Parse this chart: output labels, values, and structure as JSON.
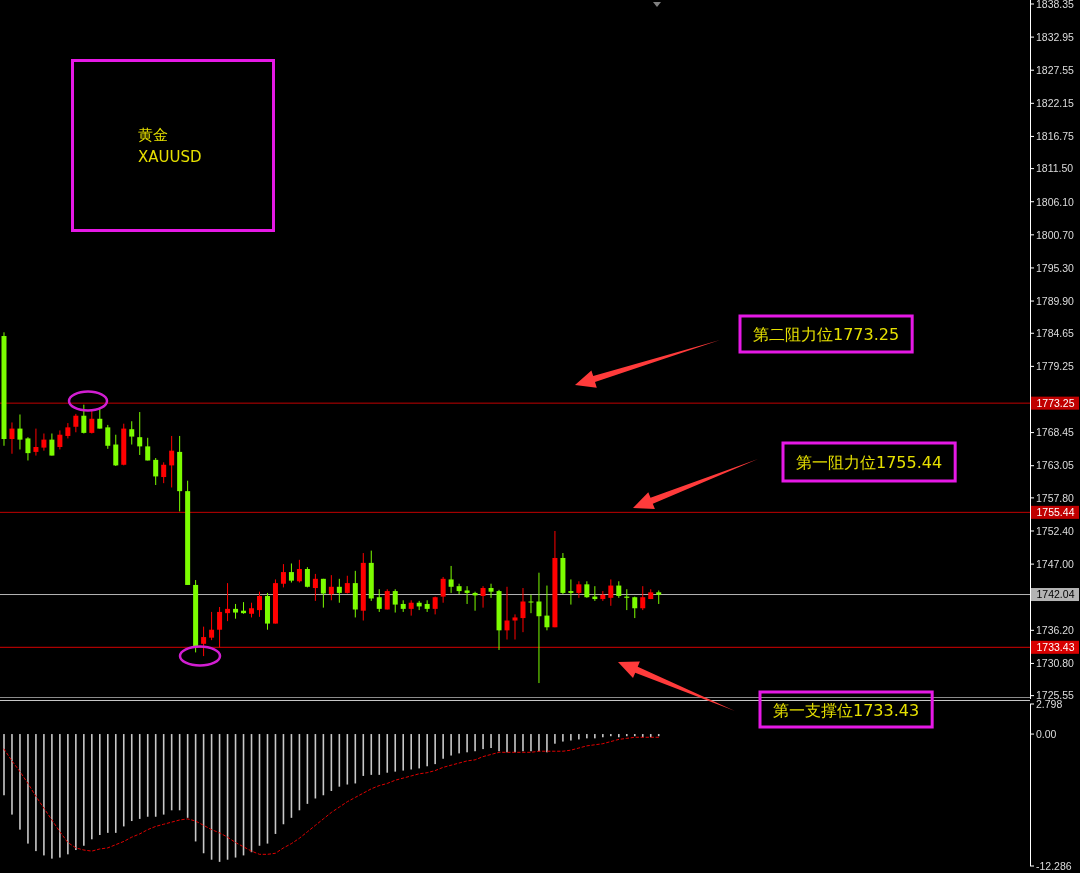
{
  "chart_data": [
    {
      "type": "candlestick",
      "title": "黄金",
      "subtitle": "XAUUSD",
      "categories": [
        null,
        null,
        null,
        null,
        null,
        null,
        null,
        null,
        null,
        null,
        null,
        null,
        null,
        null,
        null,
        null,
        null,
        null,
        null,
        null,
        null,
        null,
        null,
        null,
        null,
        null,
        null,
        null,
        null,
        null,
        null,
        null,
        null,
        null,
        null,
        null,
        null,
        null,
        null,
        null,
        null,
        null,
        null,
        null,
        null,
        null,
        null,
        null,
        null,
        null,
        null,
        null,
        null,
        null,
        null,
        null,
        null,
        null,
        null,
        null,
        null,
        null,
        null,
        null,
        null,
        null,
        null,
        null,
        null,
        null,
        null,
        null,
        null,
        null,
        null,
        null,
        null,
        null,
        null,
        null,
        null,
        null,
        null,
        null,
        null,
        null,
        null,
        null,
        null,
        null,
        null,
        null,
        null,
        null,
        null,
        null,
        null,
        null,
        null,
        null,
        null,
        null,
        null,
        null,
        null,
        null,
        null,
        null,
        null,
        null,
        null,
        null,
        null,
        null,
        null,
        null,
        null,
        null,
        null,
        null,
        null,
        null,
        null,
        null,
        null,
        null,
        null,
        null,
        null
      ],
      "ohlc": [
        [
          1784.2,
          1784.8,
          1766.3,
          1767.4
        ],
        [
          1767.4,
          1770.1,
          1765.0,
          1769.1
        ],
        [
          1769.1,
          1771.4,
          1765.7,
          1767.3
        ],
        [
          1767.5,
          1767.7,
          1763.9,
          1765.1
        ],
        [
          1765.3,
          1769.1,
          1764.7,
          1766.1
        ],
        [
          1766.0,
          1768.3,
          1765.5,
          1767.3
        ],
        [
          1767.3,
          1768.3,
          1764.7,
          1764.7
        ],
        [
          1766.1,
          1768.8,
          1765.7,
          1768.1
        ],
        [
          1767.9,
          1770.0,
          1767.5,
          1769.3
        ],
        [
          1769.4,
          1771.5,
          1768.5,
          1771.2
        ],
        [
          1771.2,
          1773.0,
          1768.3,
          1768.4
        ],
        [
          1768.4,
          1772.1,
          1768.3,
          1770.7
        ],
        [
          1770.7,
          1772.4,
          1769.1,
          1769.1
        ],
        [
          1769.3,
          1769.7,
          1765.8,
          1766.3
        ],
        [
          1766.5,
          1768.1,
          1763.0,
          1763.1
        ],
        [
          1763.2,
          1769.9,
          1763.1,
          1769.1
        ],
        [
          1769.0,
          1770.3,
          1766.5,
          1767.8
        ],
        [
          1767.7,
          1771.8,
          1764.8,
          1766.2
        ],
        [
          1766.2,
          1767.6,
          1763.9,
          1763.9
        ],
        [
          1764.0,
          1764.3,
          1759.9,
          1761.3
        ],
        [
          1761.2,
          1763.6,
          1760.2,
          1763.2
        ],
        [
          1763.1,
          1767.9,
          1759.5,
          1765.5
        ],
        [
          1765.3,
          1767.9,
          1755.6,
          1758.9
        ],
        [
          1758.9,
          1760.6,
          1743.6,
          1743.6
        ],
        [
          1743.6,
          1744.4,
          1732.6,
          1733.6
        ],
        [
          1734.0,
          1736.8,
          1732.0,
          1735.1
        ],
        [
          1735.0,
          1739.2,
          1734.6,
          1736.3
        ],
        [
          1736.3,
          1740.0,
          1733.4,
          1739.2
        ],
        [
          1739.0,
          1743.9,
          1737.7,
          1739.7
        ],
        [
          1739.7,
          1740.5,
          1738.1,
          1739.1
        ],
        [
          1739.4,
          1740.8,
          1738.9,
          1739.0
        ],
        [
          1738.9,
          1740.7,
          1738.3,
          1739.8
        ],
        [
          1739.5,
          1742.5,
          1738.4,
          1741.8
        ],
        [
          1741.8,
          1742.3,
          1736.3,
          1737.3
        ],
        [
          1737.3,
          1744.5,
          1737.3,
          1743.9
        ],
        [
          1743.8,
          1747.0,
          1743.2,
          1745.7
        ],
        [
          1745.7,
          1747.1,
          1744.0,
          1744.3
        ],
        [
          1744.2,
          1747.7,
          1744.0,
          1746.2
        ],
        [
          1746.2,
          1746.5,
          1743.2,
          1743.3
        ],
        [
          1743.1,
          1745.4,
          1741.0,
          1744.6
        ],
        [
          1744.6,
          1744.6,
          1739.9,
          1742.2
        ],
        [
          1742.1,
          1745.2,
          1741.1,
          1743.3
        ],
        [
          1743.3,
          1744.6,
          1740.7,
          1742.3
        ],
        [
          1742.3,
          1745.1,
          1742.2,
          1743.9
        ],
        [
          1743.9,
          1745.9,
          1738.3,
          1739.6
        ],
        [
          1739.4,
          1748.8,
          1737.8,
          1747.2
        ],
        [
          1747.2,
          1749.2,
          1741.0,
          1741.4
        ],
        [
          1741.6,
          1742.9,
          1739.2,
          1739.7
        ],
        [
          1739.6,
          1742.9,
          1739.6,
          1742.6
        ],
        [
          1742.6,
          1742.9,
          1739.1,
          1740.4
        ],
        [
          1740.5,
          1741.1,
          1739.2,
          1739.7
        ],
        [
          1739.7,
          1741.1,
          1738.6,
          1740.7
        ],
        [
          1740.7,
          1741.0,
          1739.5,
          1740.1
        ],
        [
          1740.5,
          1741.1,
          1739.2,
          1739.7
        ],
        [
          1739.7,
          1741.7,
          1738.8,
          1741.6
        ],
        [
          1741.7,
          1744.9,
          1740.7,
          1744.6
        ],
        [
          1744.5,
          1746.7,
          1742.3,
          1743.3
        ],
        [
          1743.4,
          1743.8,
          1742.1,
          1742.6
        ],
        [
          1742.7,
          1743.4,
          1740.5,
          1742.3
        ],
        [
          1742.3,
          1742.5,
          1739.4,
          1741.9
        ],
        [
          1741.8,
          1743.4,
          1739.9,
          1743.1
        ],
        [
          1743.1,
          1743.8,
          1741.5,
          1742.5
        ],
        [
          1742.6,
          1742.8,
          1733.0,
          1736.2
        ],
        [
          1736.2,
          1743.3,
          1734.7,
          1737.8
        ],
        [
          1737.8,
          1738.8,
          1734.7,
          1738.3
        ],
        [
          1738.2,
          1743.1,
          1735.9,
          1740.9
        ],
        [
          1740.9,
          1742.0,
          1739.0,
          1740.8
        ],
        [
          1740.9,
          1745.6,
          1727.6,
          1738.5
        ],
        [
          1738.6,
          1743.5,
          1736.2,
          1736.7
        ],
        [
          1736.7,
          1752.4,
          1736.7,
          1748.0
        ],
        [
          1748.0,
          1748.8,
          1742.1,
          1742.3
        ],
        [
          1742.6,
          1744.5,
          1740.4,
          1742.3
        ],
        [
          1742.3,
          1744.2,
          1741.5,
          1743.7
        ],
        [
          1743.7,
          1744.2,
          1741.5,
          1741.6
        ],
        [
          1741.7,
          1743.4,
          1741.0,
          1741.3
        ],
        [
          1741.3,
          1742.6,
          1741.0,
          1742.0
        ],
        [
          1741.5,
          1744.5,
          1740.2,
          1743.5
        ],
        [
          1743.5,
          1744.2,
          1741.5,
          1741.8
        ],
        [
          1741.7,
          1742.9,
          1739.5,
          1741.5
        ],
        [
          1741.6,
          1741.7,
          1738.2,
          1739.8
        ],
        [
          1739.8,
          1743.4,
          1739.5,
          1741.6
        ],
        [
          1741.3,
          1742.9,
          1741.3,
          1742.4
        ],
        [
          1742.4,
          1742.7,
          1740.5,
          1742.0
        ],
        null,
        null,
        null,
        null,
        null,
        null,
        null,
        null,
        null,
        null,
        null,
        null,
        null,
        null,
        null,
        null,
        null,
        null,
        null,
        null,
        null,
        null,
        null,
        null,
        null,
        null,
        null,
        null,
        null,
        null,
        null,
        null,
        null,
        null,
        null,
        null,
        null,
        null,
        null,
        null,
        null,
        null,
        null,
        null,
        null,
        null
      ],
      "colors": [
        "#7cfc00",
        "#ff0000",
        "#7cfc00",
        "#7cfc00",
        "#ff0000",
        "#ff0000",
        "#7cfc00",
        "#ff0000",
        "#ff0000",
        "#ff0000",
        "#7cfc00",
        "#ff0000",
        "#7cfc00",
        "#7cfc00",
        "#7cfc00",
        "#ff0000",
        "#7cfc00",
        "#7cfc00",
        "#7cfc00",
        "#7cfc00",
        "#ff0000",
        "#ff0000",
        "#7cfc00",
        "#7cfc00",
        "#7cfc00",
        "#ff0000",
        "#ff0000",
        "#ff0000",
        "#ff0000",
        "#7cfc00",
        "#7cfc00",
        "#ff0000",
        "#ff0000",
        "#7cfc00",
        "#ff0000",
        "#ff0000",
        "#7cfc00",
        "#ff0000",
        "#7cfc00",
        "#ff0000",
        "#7cfc00",
        "#ff0000",
        "#7cfc00",
        "#ff0000",
        "#7cfc00",
        "#ff0000",
        "#7cfc00",
        "#7cfc00",
        "#ff0000",
        "#7cfc00",
        "#7cfc00",
        "#ff0000",
        "#7cfc00",
        "#7cfc00",
        "#ff0000",
        "#ff0000",
        "#7cfc00",
        "#7cfc00",
        "#7cfc00",
        "#7cfc00",
        "#ff0000",
        "#7cfc00",
        "#7cfc00",
        "#ff0000",
        "#ff0000",
        "#ff0000",
        "#7cfc00",
        "#7cfc00",
        "#7cfc00",
        "#ff0000",
        "#7cfc00",
        "#7cfc00",
        "#ff0000",
        "#7cfc00",
        "#7cfc00",
        "#ff0000",
        "#ff0000",
        "#7cfc00",
        "#7cfc00",
        "#7cfc00",
        "#ff0000",
        "#ff0000",
        "#7cfc00",
        null,
        null,
        null,
        null,
        null,
        null,
        null,
        null,
        null,
        null,
        null,
        null,
        null,
        null,
        null,
        null,
        null,
        null,
        null,
        null,
        null,
        null,
        null,
        null,
        null,
        null,
        null,
        null,
        null,
        null,
        null,
        null,
        null,
        null,
        null,
        null,
        null,
        null,
        null,
        null,
        null,
        null,
        null,
        null,
        null,
        null
      ],
      "ylim": [
        1725.0,
        1839.0
      ],
      "yticks": [
        1838.35,
        1832.95,
        1827.55,
        1822.15,
        1816.75,
        {
          "value": 1811.5,
          "label": "1811.50"
        },
        {
          "value": 1806.1,
          "label": "1806.10"
        },
        {
          "value": 1800.7,
          "label": "1800.70"
        },
        {
          "value": 1795.3,
          "label": "1795.30"
        },
        {
          "value": 1789.9,
          "label": "1789.90"
        },
        1784.65,
        1779.25,
        1768.45,
        1763.05,
        {
          "value": 1757.8,
          "label": "1757.80"
        },
        {
          "value": 1752.4,
          "label": "1752.40"
        },
        {
          "value": 1747.0,
          "label": "1747.00"
        },
        {
          "value": 1736.2,
          "label": "1736.20"
        },
        {
          "value": 1730.8,
          "label": "1730.80"
        },
        1725.55
      ],
      "ref_lines": [
        {
          "axis": "y",
          "value": 1773.25,
          "label": "1773.25",
          "color": "#c00000"
        },
        {
          "axis": "y",
          "value": 1755.44,
          "label": "1755.44",
          "color": "#c00000"
        },
        {
          "axis": "y",
          "value": 1742.04,
          "label": "1742.04",
          "color": "#b4b4b4"
        },
        {
          "axis": "y",
          "value": 1733.43,
          "label": "1733.43",
          "color": "#d80000"
        }
      ],
      "annotations": [
        "第二阻力位1773.25",
        "第一阻力位1755.44",
        "第一支撑位1733.43"
      ]
    },
    {
      "type": "bar",
      "categories": [
        null,
        null,
        null,
        null,
        null,
        null,
        null,
        null,
        null,
        null,
        null,
        null,
        null,
        null,
        null,
        null,
        null,
        null,
        null,
        null,
        null,
        null,
        null,
        null,
        null,
        null,
        null,
        null,
        null,
        null,
        null,
        null,
        null,
        null,
        null,
        null,
        null,
        null,
        null,
        null,
        null,
        null,
        null,
        null,
        null,
        null,
        null,
        null,
        null,
        null,
        null,
        null,
        null,
        null,
        null,
        null,
        null,
        null,
        null,
        null,
        null,
        null,
        null,
        null,
        null,
        null,
        null,
        null,
        null,
        null,
        null,
        null,
        null,
        null,
        null,
        null,
        null,
        null,
        null,
        null,
        null,
        null,
        null,
        null,
        null,
        null,
        null,
        null,
        null,
        null,
        null,
        null,
        null,
        null,
        null,
        null,
        null,
        null,
        null,
        null,
        null,
        null,
        null,
        null,
        null,
        null,
        null,
        null,
        null,
        null,
        null,
        null,
        null,
        null,
        null,
        null,
        null,
        null,
        null,
        null,
        null,
        null,
        null,
        null,
        null,
        null,
        null,
        null,
        null
      ],
      "series": [
        {
          "color": "#c8c8c8",
          "values": [
            -5.7,
            -7.5,
            -8.9,
            -10.2,
            -10.9,
            -11.3,
            -11.6,
            -11.5,
            -11.2,
            -10.8,
            -10.4,
            -9.8,
            -9.4,
            -9.2,
            -9.2,
            -8.6,
            -8.1,
            -7.9,
            -7.7,
            -7.7,
            -7.5,
            -7.1,
            -7.1,
            -7.8,
            -10.0,
            -11.1,
            -11.7,
            -11.9,
            -11.7,
            -11.5,
            -11.3,
            -11.0,
            -10.4,
            -10.2,
            -9.3,
            -8.4,
            -7.8,
            -7.1,
            -6.5,
            -6.0,
            -5.7,
            -5.3,
            -4.9,
            -4.7,
            -4.6,
            -3.9,
            -3.8,
            -3.8,
            -3.6,
            -3.5,
            -3.4,
            -3.3,
            -3.2,
            -3.0,
            -2.8,
            -2.3,
            -2.0,
            -1.8,
            -1.7,
            -1.6,
            -1.4,
            -1.3,
            -1.6,
            -1.7,
            -1.7,
            -1.6,
            -1.6,
            -1.6,
            -1.7,
            -0.9,
            -0.7,
            -0.6,
            -0.5,
            -0.4,
            -0.4,
            -0.3,
            -0.2,
            -0.3,
            -0.2,
            -0.2,
            -0.3,
            -0.3,
            -0.2,
            null,
            null,
            null,
            null,
            null,
            null,
            null,
            null,
            null,
            null,
            null,
            null,
            null,
            null,
            null,
            null,
            null,
            null,
            null,
            null,
            null,
            null,
            null,
            null,
            null,
            null,
            null,
            null,
            null,
            null,
            null,
            null,
            null,
            null,
            null,
            null,
            null,
            null,
            null,
            null,
            null,
            null,
            null,
            null,
            null,
            null
          ]
        },
        {
          "type": "line",
          "color": "#e00000",
          "line_style": "dotted",
          "values": [
            -1.4,
            -2.5,
            -3.5,
            -4.6,
            -5.8,
            -6.9,
            -8.0,
            -9.1,
            -10.1,
            -10.6,
            -10.8,
            -10.9,
            -10.7,
            -10.6,
            -10.3,
            -10.0,
            -9.6,
            -9.3,
            -8.9,
            -8.6,
            -8.4,
            -8.2,
            -8.0,
            -7.9,
            -8.1,
            -8.5,
            -8.9,
            -9.2,
            -9.6,
            -10.1,
            -10.5,
            -10.9,
            -11.2,
            -11.2,
            -11.1,
            -10.6,
            -10.2,
            -9.7,
            -9.1,
            -8.5,
            -7.9,
            -7.3,
            -6.8,
            -6.3,
            -5.9,
            -5.5,
            -5.1,
            -4.8,
            -4.6,
            -4.3,
            -4.1,
            -3.9,
            -3.7,
            -3.6,
            -3.4,
            -3.1,
            -2.9,
            -2.7,
            -2.5,
            -2.4,
            -2.1,
            -1.9,
            -1.7,
            -1.7,
            -1.7,
            -1.7,
            -1.7,
            -1.6,
            -1.6,
            -1.6,
            -1.6,
            -1.5,
            -1.3,
            -1.1,
            -1.0,
            -0.9,
            -0.7,
            -0.5,
            -0.4,
            -0.3,
            -0.3,
            -0.3,
            -0.3,
            null,
            null,
            null,
            null,
            null,
            null,
            null,
            null,
            null,
            null,
            null,
            null,
            null,
            null,
            null,
            null,
            null,
            null,
            null,
            null,
            null,
            null,
            null,
            null,
            null,
            null,
            null,
            null,
            null,
            null,
            null,
            null,
            null,
            null,
            null,
            null,
            null,
            null,
            null,
            null,
            null,
            null,
            null,
            null,
            null,
            null
          ]
        }
      ],
      "ylim": [
        -12.286,
        2.798
      ],
      "yticks": [
        2.798,
        {
          "value": 0,
          "label": "0.00"
        },
        -12.286
      ]
    }
  ]
}
